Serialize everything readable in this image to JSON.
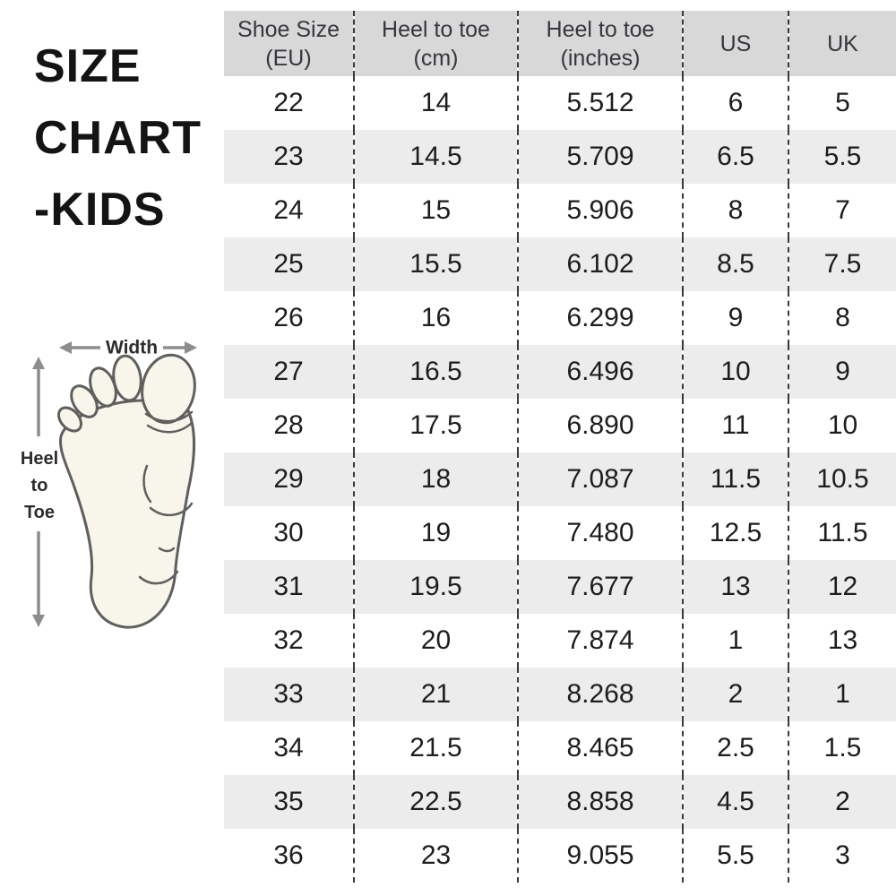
{
  "title": {
    "lines": [
      "SIZE",
      "CHART",
      "-KIDS"
    ],
    "color": "#141414"
  },
  "diagram": {
    "width_label": "Width",
    "heel_to_toe_lines": [
      "Heel",
      "to",
      "Toe"
    ],
    "foot_fill": "#f8f6ea",
    "foot_outline_color": "#5f5f5f",
    "arrow_color": "#8d8d8d",
    "label_color": "#2d2d2d"
  },
  "table": {
    "header_bg": "#d8d8d8",
    "alt_row_bg": "#ececec",
    "row_bg": "#ffffff",
    "divider_color": "#3a3a3a",
    "header_text_color": "#36363e",
    "cell_text_color": "#1d1d1d",
    "columns": [
      {
        "lines": [
          "Shoe Size",
          "(EU)"
        ]
      },
      {
        "lines": [
          "Heel to toe",
          "(cm)"
        ]
      },
      {
        "lines": [
          "Heel to toe",
          "(inches)"
        ]
      },
      {
        "lines": [
          "US"
        ]
      },
      {
        "lines": [
          "UK"
        ]
      }
    ]
  },
  "chart_data": {
    "type": "table",
    "title": "SIZE CHART -KIDS",
    "columns": [
      "Shoe Size (EU)",
      "Heel to toe (cm)",
      "Heel to toe (inches)",
      "US",
      "UK"
    ],
    "rows": [
      [
        "22",
        "14",
        "5.512",
        "6",
        "5"
      ],
      [
        "23",
        "14.5",
        "5.709",
        "6.5",
        "5.5"
      ],
      [
        "24",
        "15",
        "5.906",
        "8",
        "7"
      ],
      [
        "25",
        "15.5",
        "6.102",
        "8.5",
        "7.5"
      ],
      [
        "26",
        "16",
        "6.299",
        "9",
        "8"
      ],
      [
        "27",
        "16.5",
        "6.496",
        "10",
        "9"
      ],
      [
        "28",
        "17.5",
        "6.890",
        "11",
        "10"
      ],
      [
        "29",
        "18",
        "7.087",
        "11.5",
        "10.5"
      ],
      [
        "30",
        "19",
        "7.480",
        "12.5",
        "11.5"
      ],
      [
        "31",
        "19.5",
        "7.677",
        "13",
        "12"
      ],
      [
        "32",
        "20",
        "7.874",
        "1",
        "13"
      ],
      [
        "33",
        "21",
        "8.268",
        "2",
        "1"
      ],
      [
        "34",
        "21.5",
        "8.465",
        "2.5",
        "1.5"
      ],
      [
        "35",
        "22.5",
        "8.858",
        "4.5",
        "2"
      ],
      [
        "36",
        "23",
        "9.055",
        "5.5",
        "3"
      ]
    ]
  }
}
